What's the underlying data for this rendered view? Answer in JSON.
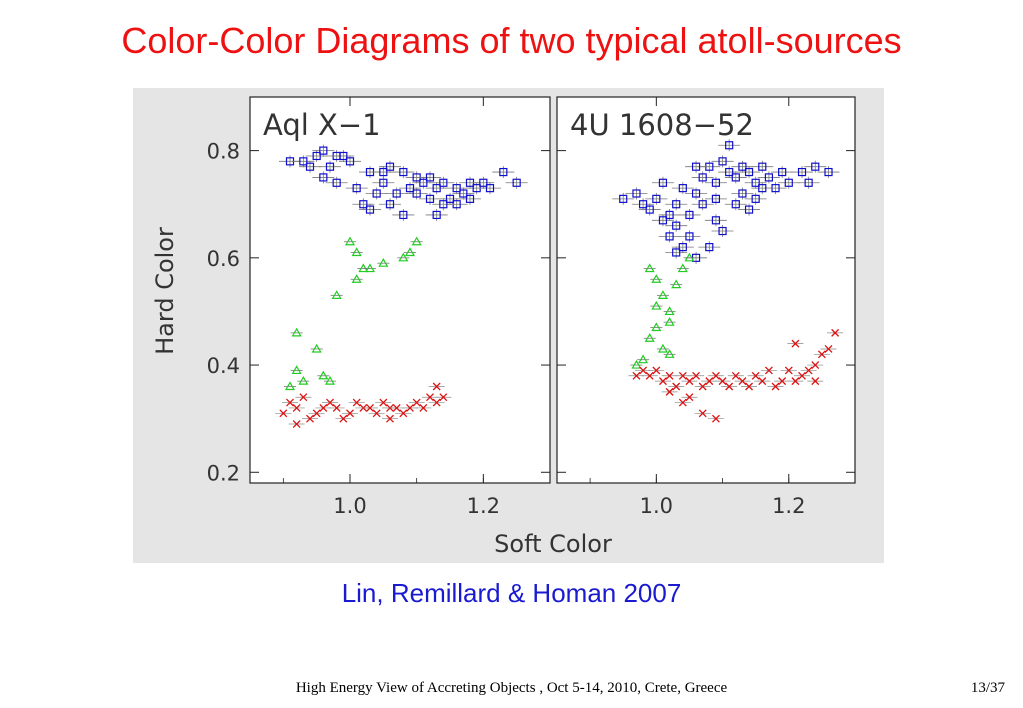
{
  "title": "Color-Color Diagrams of two typical atoll-sources",
  "caption": "Lin, Remillard & Homan 2007",
  "footer": "High Energy View of Accreting Objects , Oct 5-14, 2010, Crete, Greece",
  "page": "13/37",
  "colors": {
    "title": "#ee1111",
    "caption": "#1a1ad0",
    "blue_markers": "#1010cc",
    "green_markers": "#22cc22",
    "red_markers": "#dd1111"
  },
  "chart_data": [
    {
      "type": "scatter",
      "panel_label": "Aql X−1",
      "xlabel": "Soft Color",
      "ylabel": "Hard Color",
      "xlim": [
        0.85,
        1.3
      ],
      "ylim": [
        0.18,
        0.9
      ],
      "xticks": [
        "1.0",
        "1.2"
      ],
      "yticks": [
        "0.2",
        "0.4",
        "0.6",
        "0.8"
      ],
      "series": [
        {
          "marker": "square",
          "color": "#1010cc",
          "points": [
            [
              0.91,
              0.78
            ],
            [
              0.93,
              0.78
            ],
            [
              0.95,
              0.79
            ],
            [
              0.96,
              0.8
            ],
            [
              0.98,
              0.79
            ],
            [
              0.99,
              0.79
            ],
            [
              1.0,
              0.78
            ],
            [
              0.97,
              0.77
            ],
            [
              0.94,
              0.77
            ],
            [
              0.96,
              0.75
            ],
            [
              0.98,
              0.74
            ],
            [
              1.03,
              0.76
            ],
            [
              1.05,
              0.76
            ],
            [
              1.06,
              0.77
            ],
            [
              1.08,
              0.76
            ],
            [
              1.1,
              0.75
            ],
            [
              1.12,
              0.75
            ],
            [
              1.14,
              0.74
            ],
            [
              1.16,
              0.73
            ],
            [
              1.18,
              0.74
            ],
            [
              1.19,
              0.73
            ],
            [
              1.2,
              0.74
            ],
            [
              1.15,
              0.71
            ],
            [
              1.17,
              0.72
            ],
            [
              1.13,
              0.73
            ],
            [
              1.11,
              0.74
            ],
            [
              1.09,
              0.73
            ],
            [
              1.05,
              0.74
            ],
            [
              1.07,
              0.72
            ],
            [
              1.1,
              0.72
            ],
            [
              1.16,
              0.7
            ],
            [
              1.01,
              0.73
            ],
            [
              1.02,
              0.7
            ],
            [
              1.03,
              0.69
            ],
            [
              1.08,
              0.68
            ],
            [
              1.13,
              0.68
            ],
            [
              1.12,
              0.71
            ],
            [
              1.14,
              0.7
            ],
            [
              1.23,
              0.76
            ],
            [
              1.25,
              0.74
            ],
            [
              1.18,
              0.71
            ],
            [
              1.21,
              0.73
            ],
            [
              1.06,
              0.7
            ],
            [
              1.04,
              0.72
            ]
          ]
        },
        {
          "marker": "triangle",
          "color": "#22cc22",
          "points": [
            [
              0.92,
              0.39
            ],
            [
              0.93,
              0.37
            ],
            [
              0.92,
              0.46
            ],
            [
              0.95,
              0.43
            ],
            [
              0.97,
              0.37
            ],
            [
              0.98,
              0.53
            ],
            [
              1.0,
              0.63
            ],
            [
              1.01,
              0.61
            ],
            [
              1.02,
              0.58
            ],
            [
              1.03,
              0.58
            ],
            [
              1.01,
              0.56
            ],
            [
              1.05,
              0.59
            ],
            [
              1.08,
              0.6
            ],
            [
              1.09,
              0.61
            ],
            [
              1.1,
              0.63
            ],
            [
              0.96,
              0.38
            ],
            [
              0.91,
              0.36
            ]
          ]
        },
        {
          "marker": "cross",
          "color": "#dd1111",
          "points": [
            [
              0.9,
              0.31
            ],
            [
              0.91,
              0.33
            ],
            [
              0.92,
              0.32
            ],
            [
              0.93,
              0.34
            ],
            [
              0.95,
              0.31
            ],
            [
              0.96,
              0.32
            ],
            [
              0.97,
              0.33
            ],
            [
              0.98,
              0.32
            ],
            [
              1.0,
              0.31
            ],
            [
              1.01,
              0.33
            ],
            [
              1.02,
              0.32
            ],
            [
              1.03,
              0.32
            ],
            [
              1.04,
              0.31
            ],
            [
              1.05,
              0.33
            ],
            [
              1.06,
              0.32
            ],
            [
              1.07,
              0.32
            ],
            [
              1.08,
              0.31
            ],
            [
              1.09,
              0.32
            ],
            [
              1.1,
              0.33
            ],
            [
              1.11,
              0.32
            ],
            [
              1.12,
              0.34
            ],
            [
              1.13,
              0.33
            ],
            [
              1.14,
              0.34
            ],
            [
              1.13,
              0.36
            ],
            [
              0.94,
              0.3
            ],
            [
              0.99,
              0.3
            ],
            [
              0.92,
              0.29
            ],
            [
              1.06,
              0.3
            ]
          ]
        }
      ]
    },
    {
      "type": "scatter",
      "panel_label": "4U 1608−52",
      "xlabel": "Soft Color",
      "ylabel": "Hard Color",
      "xlim": [
        0.85,
        1.3
      ],
      "ylim": [
        0.18,
        0.9
      ],
      "xticks": [
        "1.0",
        "1.2"
      ],
      "yticks": [
        "0.2",
        "0.4",
        "0.6",
        "0.8"
      ],
      "series": [
        {
          "marker": "square",
          "color": "#1010cc",
          "points": [
            [
              0.95,
              0.71
            ],
            [
              0.97,
              0.72
            ],
            [
              0.98,
              0.7
            ],
            [
              0.99,
              0.69
            ],
            [
              1.0,
              0.71
            ],
            [
              1.01,
              0.67
            ],
            [
              1.02,
              0.64
            ],
            [
              1.03,
              0.66
            ],
            [
              1.04,
              0.62
            ],
            [
              1.05,
              0.68
            ],
            [
              1.06,
              0.72
            ],
            [
              1.07,
              0.75
            ],
            [
              1.08,
              0.77
            ],
            [
              1.09,
              0.74
            ],
            [
              1.1,
              0.78
            ],
            [
              1.11,
              0.76
            ],
            [
              1.12,
              0.75
            ],
            [
              1.13,
              0.77
            ],
            [
              1.14,
              0.76
            ],
            [
              1.15,
              0.74
            ],
            [
              1.16,
              0.77
            ],
            [
              1.17,
              0.75
            ],
            [
              1.18,
              0.73
            ],
            [
              1.19,
              0.76
            ],
            [
              1.2,
              0.74
            ],
            [
              1.22,
              0.76
            ],
            [
              1.24,
              0.77
            ],
            [
              1.26,
              0.76
            ],
            [
              1.11,
              0.81
            ],
            [
              1.12,
              0.7
            ],
            [
              1.14,
              0.69
            ],
            [
              1.1,
              0.65
            ],
            [
              1.09,
              0.67
            ],
            [
              1.07,
              0.7
            ],
            [
              1.05,
              0.64
            ],
            [
              1.08,
              0.62
            ],
            [
              1.03,
              0.61
            ],
            [
              1.06,
              0.6
            ],
            [
              1.02,
              0.68
            ],
            [
              1.04,
              0.73
            ],
            [
              1.13,
              0.72
            ],
            [
              1.15,
              0.71
            ],
            [
              1.01,
              0.74
            ],
            [
              1.06,
              0.77
            ],
            [
              1.16,
              0.73
            ],
            [
              1.23,
              0.74
            ],
            [
              1.09,
              0.71
            ],
            [
              1.03,
              0.7
            ]
          ]
        },
        {
          "marker": "triangle",
          "color": "#22cc22",
          "points": [
            [
              0.99,
              0.58
            ],
            [
              1.0,
              0.56
            ],
            [
              1.01,
              0.53
            ],
            [
              1.02,
              0.5
            ],
            [
              1.0,
              0.47
            ],
            [
              0.99,
              0.45
            ],
            [
              1.01,
              0.43
            ],
            [
              0.98,
              0.41
            ],
            [
              1.02,
              0.42
            ],
            [
              1.03,
              0.55
            ],
            [
              1.04,
              0.58
            ],
            [
              1.05,
              0.6
            ],
            [
              1.02,
              0.48
            ],
            [
              0.97,
              0.4
            ],
            [
              1.0,
              0.51
            ]
          ]
        },
        {
          "marker": "cross",
          "color": "#dd1111",
          "points": [
            [
              0.97,
              0.38
            ],
            [
              0.98,
              0.39
            ],
            [
              0.99,
              0.38
            ],
            [
              1.0,
              0.39
            ],
            [
              1.01,
              0.37
            ],
            [
              1.02,
              0.38
            ],
            [
              1.03,
              0.36
            ],
            [
              1.04,
              0.38
            ],
            [
              1.05,
              0.37
            ],
            [
              1.06,
              0.38
            ],
            [
              1.07,
              0.36
            ],
            [
              1.08,
              0.37
            ],
            [
              1.09,
              0.38
            ],
            [
              1.1,
              0.37
            ],
            [
              1.11,
              0.36
            ],
            [
              1.12,
              0.38
            ],
            [
              1.13,
              0.37
            ],
            [
              1.14,
              0.36
            ],
            [
              1.15,
              0.38
            ],
            [
              1.16,
              0.37
            ],
            [
              1.17,
              0.39
            ],
            [
              1.18,
              0.36
            ],
            [
              1.19,
              0.37
            ],
            [
              1.2,
              0.39
            ],
            [
              1.21,
              0.37
            ],
            [
              1.22,
              0.38
            ],
            [
              1.23,
              0.39
            ],
            [
              1.24,
              0.4
            ],
            [
              1.25,
              0.42
            ],
            [
              1.26,
              0.43
            ],
            [
              1.27,
              0.46
            ],
            [
              1.02,
              0.35
            ],
            [
              1.05,
              0.34
            ],
            [
              1.07,
              0.31
            ],
            [
              1.09,
              0.3
            ],
            [
              1.04,
              0.33
            ],
            [
              1.21,
              0.44
            ],
            [
              1.24,
              0.37
            ]
          ]
        }
      ]
    }
  ]
}
